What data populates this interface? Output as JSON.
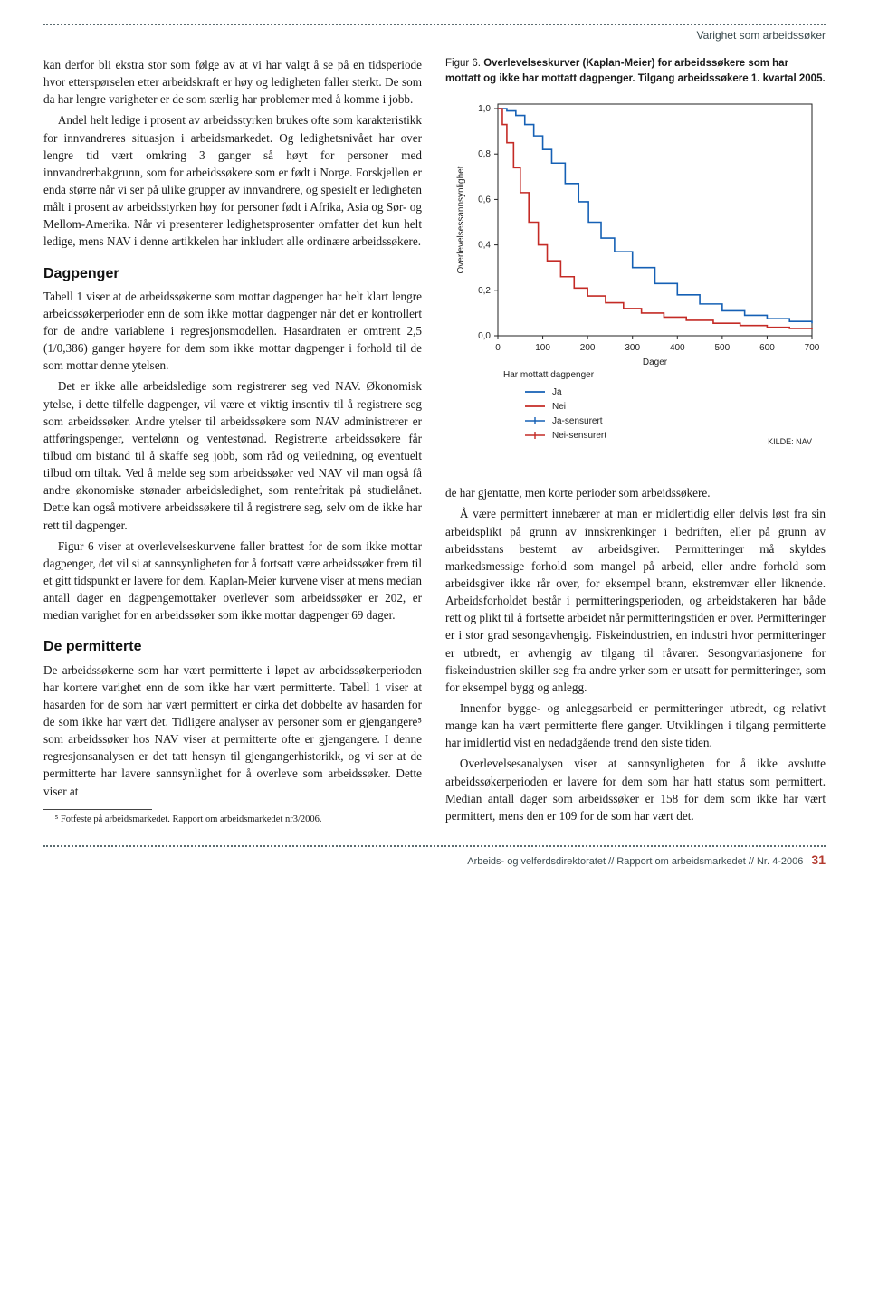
{
  "running_head": "Varighet som arbeidssøker",
  "left": {
    "para1": "kan derfor bli ekstra stor som følge av at vi har valgt å se på en tidsperiode hvor etterspørselen etter arbeidskraft er høy og ledigheten faller sterkt. De som da har lengre varigheter er de som særlig har problemer med å komme i jobb.",
    "para2": "Andel helt ledige i prosent av arbeidsstyrken brukes ofte som karakteristikk for innvandreres situasjon i arbeidsmarkedet. Og ledighetsnivået har over lengre tid vært omkring 3 ganger så høyt for personer med innvandrerbakgrunn, som for arbeidssøkere som er født i Norge. Forskjellen er enda større når vi ser på ulike grupper av innvandrere, og spesielt er ledigheten målt i prosent av arbeidsstyrken høy for personer født i Afrika, Asia og Sør- og Mellom-Amerika. Når vi presenterer ledighetsprosenter omfatter det kun helt ledige, mens NAV i denne artikkelen har inkludert alle ordinære arbeidssøkere.",
    "h_dag": "Dagpenger",
    "para3": "Tabell 1 viser at de arbeidssøkerne som mottar dagpenger har helt klart lengre arbeidssøkerperioder enn de som ikke mottar dagpenger når det er kontrollert for de andre variablene i regresjonsmodellen. Hasardraten er omtrent 2,5 (1/0,386) ganger høyere for dem som ikke mottar dagpenger i forhold til de som mottar denne ytelsen.",
    "para4": "Det er ikke alle arbeidsledige som registrerer seg ved NAV. Økonomisk ytelse, i dette tilfelle dagpenger, vil være et viktig insentiv til å registrere seg som arbeidssøker. Andre ytelser til arbeidssøkere som NAV administrerer er attføringspenger, ventelønn og ventestønad. Registrerte arbeidssøkere får tilbud om bistand til å skaffe seg jobb, som råd og veiledning, og eventuelt tilbud om tiltak. Ved å melde seg som arbeidssøker ved NAV vil man også få andre økonomiske stønader arbeidsledighet, som rentefritak på studielånet. Dette kan også motivere arbeidssøkere til å registrere seg, selv om de ikke har rett til dagpenger.",
    "para5": "Figur 6 viser at overlevelseskurvene faller brattest for de som ikke mottar dagpenger, det vil si at sannsynligheten for å fortsatt være arbeidssøker frem til et gitt tidspunkt er lavere for dem. Kaplan-Meier kurvene viser at mens median antall dager en dagpengemottaker overlever som arbeidssøker er 202, er median varighet for en arbeidssøker som ikke mottar dagpenger 69 dager.",
    "h_perm": "De permitterte",
    "para6": "De arbeidssøkerne som har vært permitterte i løpet av arbeidssøkerperioden har kortere varighet enn de som ikke har vært permitterte. Tabell 1 viser at hasarden for de som har vært permittert er cirka det dobbelte av hasarden for de som ikke har vært det. Tidligere analyser av personer som er gjengangere⁵ som arbeidssøker hos NAV viser at permitterte ofte er gjengangere. I denne regresjonsanalysen er det tatt hensyn til gjengangerhistorikk, og vi ser at de permitterte har lavere sannsynlighet for å overleve som arbeidssøker. Dette viser at",
    "footnote": "⁵ Fotfeste på arbeidsmarkedet. Rapport om arbeidsmarkedet nr3/2006."
  },
  "figure": {
    "label": "Figur 6.",
    "title": "Overlevelseskurver (Kaplan-Meier) for arbeidssøkere som har mottatt og ikke har mottatt dagpenger. Tilgang arbeidssøkere 1. kvartal 2005.",
    "y_axis_label": "Overlevelsessannsynlighet",
    "y_ticks": [
      "0,0",
      "0,2",
      "0,4",
      "0,6",
      "0,8",
      "1,0"
    ],
    "x_ticks": [
      "0",
      "100",
      "200",
      "300",
      "400",
      "500",
      "600",
      "700"
    ],
    "x_label": "Dager",
    "xlim": [
      0,
      700
    ],
    "ylim": [
      0.0,
      1.02
    ],
    "legend_title": "Har mottatt dagpenger",
    "legend": {
      "ja": "Ja",
      "nei": "Nei",
      "ja_cens": "Ja-sensurert",
      "nei_cens": "Nei-sensurert"
    },
    "colors": {
      "ja": "#1560b5",
      "nei": "#c42b26",
      "axis": "#222222",
      "bg": "#ffffff"
    },
    "line_width": 1.6,
    "source": "KILDE: NAV",
    "series_ja": [
      [
        0,
        1.0
      ],
      [
        20,
        0.99
      ],
      [
        40,
        0.97
      ],
      [
        60,
        0.93
      ],
      [
        80,
        0.88
      ],
      [
        100,
        0.82
      ],
      [
        120,
        0.76
      ],
      [
        150,
        0.67
      ],
      [
        180,
        0.59
      ],
      [
        202,
        0.5
      ],
      [
        230,
        0.43
      ],
      [
        260,
        0.37
      ],
      [
        300,
        0.3
      ],
      [
        350,
        0.23
      ],
      [
        400,
        0.18
      ],
      [
        450,
        0.14
      ],
      [
        500,
        0.11
      ],
      [
        550,
        0.09
      ],
      [
        600,
        0.075
      ],
      [
        650,
        0.063
      ],
      [
        700,
        0.055
      ]
    ],
    "series_nei": [
      [
        0,
        1.0
      ],
      [
        10,
        0.93
      ],
      [
        20,
        0.85
      ],
      [
        35,
        0.74
      ],
      [
        50,
        0.63
      ],
      [
        69,
        0.5
      ],
      [
        90,
        0.4
      ],
      [
        110,
        0.33
      ],
      [
        140,
        0.26
      ],
      [
        170,
        0.21
      ],
      [
        200,
        0.175
      ],
      [
        240,
        0.145
      ],
      [
        280,
        0.12
      ],
      [
        320,
        0.1
      ],
      [
        370,
        0.082
      ],
      [
        420,
        0.068
      ],
      [
        480,
        0.055
      ],
      [
        540,
        0.045
      ],
      [
        600,
        0.037
      ],
      [
        650,
        0.032
      ],
      [
        700,
        0.028
      ]
    ]
  },
  "right": {
    "para1": "de har gjentatte, men korte perioder som arbeidssøkere.",
    "para2": "Å være permittert innebærer at man er midlertidig eller delvis løst fra sin arbeidsplikt på grunn av innskrenkinger i bedriften, eller på grunn av arbeidsstans bestemt av arbeidsgiver. Permitteringer må skyldes markedsmessige forhold som mangel på arbeid, eller andre forhold som arbeidsgiver ikke rår over, for eksempel brann, ekstremvær eller liknende. Arbeidsforholdet består i permitteringsperioden, og arbeidstakeren har både rett og plikt til å fortsette arbeidet når permitteringstiden er over. Permitteringer er i stor grad sesongavhengig. Fiskeindustrien, en industri hvor permitteringer er utbredt, er avhengig av tilgang til råvarer. Sesongvariasjonene for fiskeindustrien skiller seg fra andre yrker som er utsatt for permitteringer, som for eksempel bygg og anlegg.",
    "para3": "Innenfor bygge- og anleggsarbeid er permitteringer utbredt, og relativt mange kan ha vært permitterte flere ganger. Utviklingen i tilgang permitterte har imidlertid vist en nedadgående trend den siste tiden.",
    "para4": "Overlevelsesanalysen viser at sannsynligheten for å ikke avslutte arbeidssøkerperioden er lavere for dem som har hatt status som permittert. Median antall dager som arbeidssøker er 158 for dem som ikke har vært permittert, mens den er 109 for de som har vært det."
  },
  "footer": {
    "text": "Arbeids- og velferdsdirektoratet // Rapport om arbeidsmarkedet // Nr. 4-2006",
    "page": "31"
  }
}
